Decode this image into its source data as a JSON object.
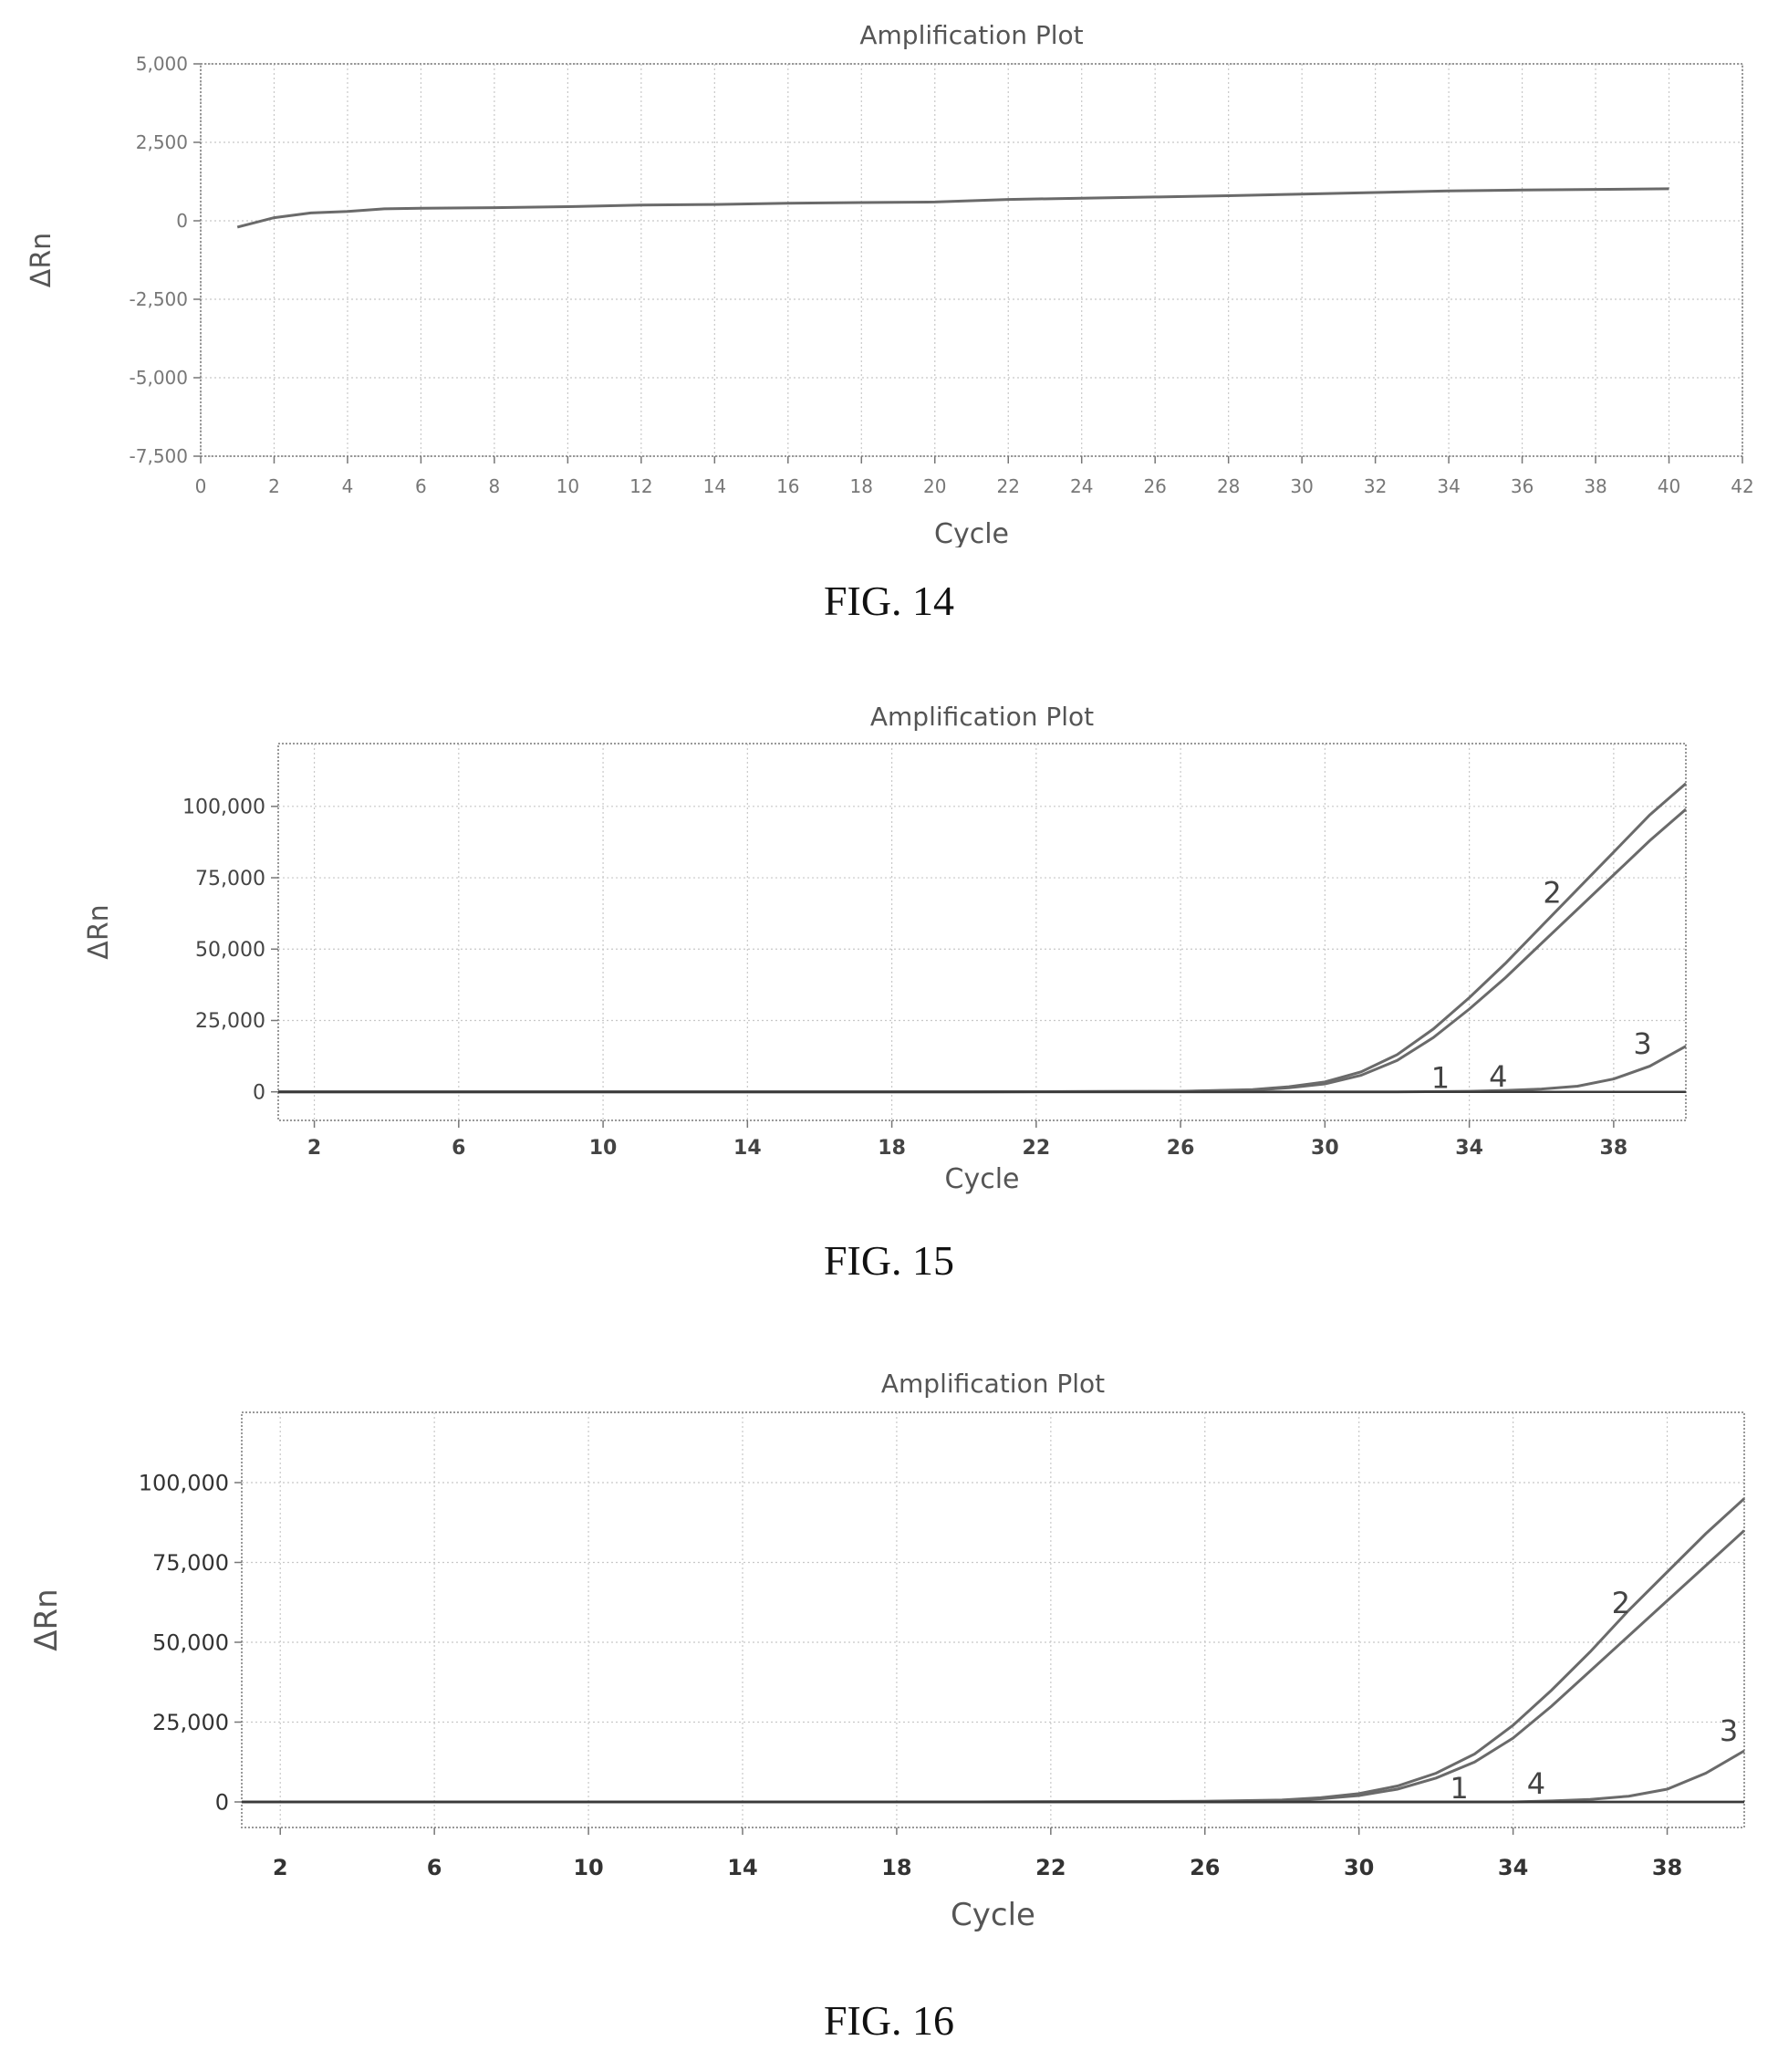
{
  "chart_data": [
    {
      "id": "fig14",
      "caption": "FIG. 14",
      "type": "line",
      "title": "Amplification Plot",
      "xlabel": "Cycle",
      "ylabel": "ΔRn",
      "xlim": [
        0,
        42
      ],
      "ylim": [
        -7500,
        5000
      ],
      "xticks": [
        0,
        2,
        4,
        6,
        8,
        10,
        12,
        14,
        16,
        18,
        20,
        22,
        24,
        26,
        28,
        30,
        32,
        34,
        36,
        38,
        40,
        42
      ],
      "yticks": [
        5000,
        2500,
        0,
        -2500,
        -5000,
        -7500
      ],
      "ytick_labels": [
        "5,000",
        "2,500",
        "0",
        "-2,500",
        "-5,000",
        "-7,500"
      ],
      "grid": true,
      "series": [
        {
          "x": [
            1,
            2,
            3,
            4,
            5,
            6,
            8,
            10,
            12,
            14,
            16,
            18,
            20,
            22,
            24,
            26,
            28,
            30,
            32,
            34,
            36,
            38,
            40
          ],
          "y": [
            -200,
            100,
            250,
            300,
            380,
            400,
            420,
            450,
            500,
            520,
            560,
            580,
            600,
            680,
            720,
            760,
            800,
            850,
            900,
            950,
            980,
            1000,
            1020
          ]
        }
      ],
      "annotations": []
    },
    {
      "id": "fig15",
      "caption": "FIG. 15",
      "type": "line",
      "title": "Amplification Plot",
      "xlabel": "Cycle",
      "ylabel": "ΔRn",
      "xlim": [
        1,
        40
      ],
      "ylim": [
        -10000,
        122000
      ],
      "xticks": [
        2,
        6,
        10,
        14,
        18,
        22,
        26,
        30,
        34,
        38
      ],
      "yticks": [
        100000,
        75000,
        50000,
        25000,
        0
      ],
      "ytick_labels": [
        "100,000",
        "75,000",
        "50,000",
        "25,000",
        "0"
      ],
      "grid": true,
      "series": [
        {
          "x": [
            1,
            10,
            20,
            26,
            28,
            29,
            30,
            31,
            32,
            33,
            34,
            35,
            36,
            37,
            38,
            39,
            40
          ],
          "y": [
            0,
            0,
            0,
            200,
            800,
            1800,
            3500,
            7000,
            13000,
            22000,
            33000,
            45000,
            58000,
            71000,
            84000,
            97000,
            108000
          ]
        },
        {
          "x": [
            1,
            10,
            20,
            26,
            28,
            29,
            30,
            31,
            32,
            33,
            34,
            35,
            36,
            37,
            38,
            39,
            40
          ],
          "y": [
            0,
            0,
            0,
            150,
            600,
            1400,
            2800,
            5800,
            11000,
            19000,
            29000,
            40000,
            52000,
            64000,
            76000,
            88000,
            99000
          ]
        },
        {
          "x": [
            1,
            20,
            32,
            34,
            35,
            36,
            37,
            38,
            39,
            40
          ],
          "y": [
            0,
            0,
            0,
            200,
            500,
            1000,
            2000,
            4500,
            9000,
            16000
          ]
        },
        {
          "x": [
            1,
            20,
            40
          ],
          "y": [
            0,
            0,
            0
          ]
        },
        {
          "x": [
            1,
            20,
            40
          ],
          "y": [
            0,
            0,
            0
          ]
        }
      ],
      "annotations": [
        {
          "text": "1",
          "x": 33.2,
          "y": 0
        },
        {
          "text": "4",
          "x": 34.8,
          "y": 500
        },
        {
          "text": "2",
          "x": 36.3,
          "y": 65000
        },
        {
          "text": "3",
          "x": 38.8,
          "y": 12000
        }
      ]
    },
    {
      "id": "fig16",
      "caption": "FIG. 16",
      "type": "line",
      "title": "Amplification Plot",
      "xlabel": "Cycle",
      "ylabel": "ΔRn",
      "xlim": [
        1,
        40
      ],
      "ylim": [
        -8000,
        122000
      ],
      "xticks": [
        2,
        6,
        10,
        14,
        18,
        22,
        26,
        30,
        34,
        38
      ],
      "yticks": [
        100000,
        75000,
        50000,
        25000,
        0
      ],
      "ytick_labels": [
        "100,000",
        "75,000",
        "50,000",
        "25,000",
        "0"
      ],
      "grid": true,
      "series": [
        {
          "x": [
            1,
            10,
            20,
            26,
            28,
            29,
            30,
            31,
            32,
            33,
            34,
            35,
            36,
            37,
            38,
            39,
            40
          ],
          "y": [
            0,
            0,
            0,
            200,
            600,
            1300,
            2600,
            5000,
            9000,
            15000,
            24000,
            35000,
            47000,
            60000,
            72000,
            84000,
            95000
          ]
        },
        {
          "x": [
            1,
            10,
            20,
            26,
            28,
            29,
            30,
            31,
            32,
            33,
            34,
            35,
            36,
            37,
            38,
            39,
            40
          ],
          "y": [
            0,
            0,
            0,
            150,
            450,
            1000,
            2000,
            4000,
            7500,
            12500,
            20000,
            30000,
            41000,
            52000,
            63000,
            74000,
            85000
          ]
        },
        {
          "x": [
            1,
            20,
            34,
            35,
            36,
            37,
            38,
            39,
            40
          ],
          "y": [
            0,
            0,
            0,
            300,
            800,
            1800,
            4000,
            9000,
            16000
          ]
        },
        {
          "x": [
            1,
            20,
            40
          ],
          "y": [
            0,
            0,
            0
          ]
        },
        {
          "x": [
            1,
            20,
            40
          ],
          "y": [
            0,
            0,
            0
          ]
        }
      ],
      "annotations": [
        {
          "text": "1",
          "x": 32.6,
          "y": 0
        },
        {
          "text": "4",
          "x": 34.6,
          "y": 1500
        },
        {
          "text": "2",
          "x": 36.8,
          "y": 58000
        },
        {
          "text": "3",
          "x": 39.6,
          "y": 18000
        }
      ]
    }
  ]
}
